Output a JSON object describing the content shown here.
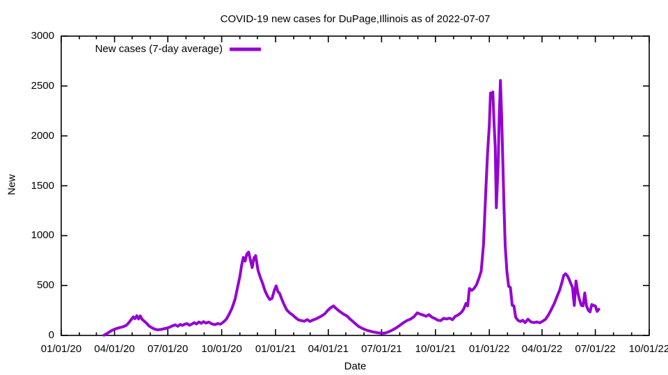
{
  "chart_data": {
    "type": "line",
    "title": "COVID-19 new cases for DuPage,Illinois as of 2022-07-07",
    "xlabel": "Date",
    "ylabel": "New",
    "ylim": [
      0,
      3000
    ],
    "y_ticks": [
      0,
      500,
      1000,
      1500,
      2000,
      2500,
      3000
    ],
    "xlim": [
      "2020-01-01",
      "2022-10-01"
    ],
    "x_major_ticks": [
      "2020-01-01",
      "2020-04-01",
      "2020-07-01",
      "2020-10-01",
      "2021-01-01",
      "2021-04-01",
      "2021-07-01",
      "2021-10-01",
      "2022-01-01",
      "2022-04-01",
      "2022-07-01",
      "2022-10-01"
    ],
    "x_tick_labels": [
      "01/01/20",
      "04/01/20",
      "07/01/20",
      "10/01/20",
      "01/01/21",
      "04/01/21",
      "07/01/21",
      "10/01/21",
      "01/01/22",
      "04/01/22",
      "07/01/22",
      "10/01/22"
    ],
    "x_minor_interval": "monthly",
    "grid": false,
    "background": "#ffffff",
    "axis_color": "#000000",
    "line_color": "#9400d3",
    "legend": {
      "position": "top-left-inside",
      "label": "New cases (7-day average)"
    },
    "series": [
      {
        "name": "New cases (7-day average)",
        "color": "#9400d3",
        "points": [
          [
            "2020-03-14",
            2
          ],
          [
            "2020-03-18",
            15
          ],
          [
            "2020-03-22",
            30
          ],
          [
            "2020-03-27",
            48
          ],
          [
            "2020-04-01",
            62
          ],
          [
            "2020-04-06",
            72
          ],
          [
            "2020-04-11",
            80
          ],
          [
            "2020-04-16",
            88
          ],
          [
            "2020-04-21",
            100
          ],
          [
            "2020-04-25",
            125
          ],
          [
            "2020-04-29",
            155
          ],
          [
            "2020-05-03",
            185
          ],
          [
            "2020-05-06",
            168
          ],
          [
            "2020-05-09",
            198
          ],
          [
            "2020-05-12",
            165
          ],
          [
            "2020-05-15",
            196
          ],
          [
            "2020-05-18",
            162
          ],
          [
            "2020-05-22",
            142
          ],
          [
            "2020-05-26",
            120
          ],
          [
            "2020-05-30",
            95
          ],
          [
            "2020-06-04",
            76
          ],
          [
            "2020-06-09",
            62
          ],
          [
            "2020-06-14",
            56
          ],
          [
            "2020-06-19",
            60
          ],
          [
            "2020-06-24",
            66
          ],
          [
            "2020-06-29",
            73
          ],
          [
            "2020-07-04",
            82
          ],
          [
            "2020-07-09",
            96
          ],
          [
            "2020-07-14",
            106
          ],
          [
            "2020-07-18",
            92
          ],
          [
            "2020-07-22",
            110
          ],
          [
            "2020-07-26",
            100
          ],
          [
            "2020-07-30",
            113
          ],
          [
            "2020-08-03",
            118
          ],
          [
            "2020-08-07",
            102
          ],
          [
            "2020-08-11",
            113
          ],
          [
            "2020-08-15",
            128
          ],
          [
            "2020-08-19",
            115
          ],
          [
            "2020-08-23",
            134
          ],
          [
            "2020-08-27",
            122
          ],
          [
            "2020-08-31",
            138
          ],
          [
            "2020-09-04",
            123
          ],
          [
            "2020-09-09",
            134
          ],
          [
            "2020-09-14",
            116
          ],
          [
            "2020-09-19",
            108
          ],
          [
            "2020-09-24",
            118
          ],
          [
            "2020-09-29",
            113
          ],
          [
            "2020-10-04",
            134
          ],
          [
            "2020-10-09",
            162
          ],
          [
            "2020-10-14",
            215
          ],
          [
            "2020-10-19",
            280
          ],
          [
            "2020-10-24",
            368
          ],
          [
            "2020-10-28",
            478
          ],
          [
            "2020-11-01",
            590
          ],
          [
            "2020-11-04",
            700
          ],
          [
            "2020-11-07",
            782
          ],
          [
            "2020-11-10",
            745
          ],
          [
            "2020-11-13",
            818
          ],
          [
            "2020-11-16",
            835
          ],
          [
            "2020-11-19",
            758
          ],
          [
            "2020-11-22",
            680
          ],
          [
            "2020-11-25",
            775
          ],
          [
            "2020-11-28",
            800
          ],
          [
            "2020-12-02",
            652
          ],
          [
            "2020-12-06",
            580
          ],
          [
            "2020-12-10",
            520
          ],
          [
            "2020-12-14",
            446
          ],
          [
            "2020-12-18",
            396
          ],
          [
            "2020-12-22",
            360
          ],
          [
            "2020-12-26",
            372
          ],
          [
            "2020-12-30",
            455
          ],
          [
            "2021-01-02",
            496
          ],
          [
            "2021-01-05",
            440
          ],
          [
            "2021-01-08",
            420
          ],
          [
            "2021-01-11",
            372
          ],
          [
            "2021-01-15",
            316
          ],
          [
            "2021-01-20",
            256
          ],
          [
            "2021-01-25",
            226
          ],
          [
            "2021-01-30",
            205
          ],
          [
            "2021-02-04",
            178
          ],
          [
            "2021-02-09",
            156
          ],
          [
            "2021-02-14",
            148
          ],
          [
            "2021-02-19",
            142
          ],
          [
            "2021-02-24",
            158
          ],
          [
            "2021-03-01",
            140
          ],
          [
            "2021-03-06",
            155
          ],
          [
            "2021-03-11",
            166
          ],
          [
            "2021-03-16",
            180
          ],
          [
            "2021-03-21",
            196
          ],
          [
            "2021-03-26",
            216
          ],
          [
            "2021-03-31",
            250
          ],
          [
            "2021-04-05",
            278
          ],
          [
            "2021-04-10",
            295
          ],
          [
            "2021-04-14",
            272
          ],
          [
            "2021-04-18",
            252
          ],
          [
            "2021-04-23",
            230
          ],
          [
            "2021-04-28",
            210
          ],
          [
            "2021-05-03",
            194
          ],
          [
            "2021-05-08",
            165
          ],
          [
            "2021-05-13",
            140
          ],
          [
            "2021-05-18",
            114
          ],
          [
            "2021-05-23",
            90
          ],
          [
            "2021-05-28",
            74
          ],
          [
            "2021-06-02",
            60
          ],
          [
            "2021-06-08",
            48
          ],
          [
            "2021-06-14",
            38
          ],
          [
            "2021-06-20",
            31
          ],
          [
            "2021-06-26",
            25
          ],
          [
            "2021-07-02",
            21
          ],
          [
            "2021-07-08",
            25
          ],
          [
            "2021-07-14",
            38
          ],
          [
            "2021-07-20",
            56
          ],
          [
            "2021-07-26",
            76
          ],
          [
            "2021-08-01",
            100
          ],
          [
            "2021-08-07",
            126
          ],
          [
            "2021-08-13",
            148
          ],
          [
            "2021-08-19",
            162
          ],
          [
            "2021-08-25",
            186
          ],
          [
            "2021-08-31",
            226
          ],
          [
            "2021-09-05",
            214
          ],
          [
            "2021-09-10",
            204
          ],
          [
            "2021-09-15",
            192
          ],
          [
            "2021-09-20",
            208
          ],
          [
            "2021-09-25",
            182
          ],
          [
            "2021-09-30",
            170
          ],
          [
            "2021-10-05",
            152
          ],
          [
            "2021-10-10",
            148
          ],
          [
            "2021-10-15",
            172
          ],
          [
            "2021-10-20",
            164
          ],
          [
            "2021-10-25",
            173
          ],
          [
            "2021-10-30",
            158
          ],
          [
            "2021-11-04",
            192
          ],
          [
            "2021-11-09",
            206
          ],
          [
            "2021-11-14",
            228
          ],
          [
            "2021-11-18",
            262
          ],
          [
            "2021-11-22",
            320
          ],
          [
            "2021-11-25",
            296
          ],
          [
            "2021-11-28",
            470
          ],
          [
            "2021-12-02",
            452
          ],
          [
            "2021-12-06",
            472
          ],
          [
            "2021-12-10",
            506
          ],
          [
            "2021-12-14",
            570
          ],
          [
            "2021-12-18",
            642
          ],
          [
            "2021-12-22",
            905
          ],
          [
            "2021-12-26",
            1455
          ],
          [
            "2021-12-29",
            1830
          ],
          [
            "2022-01-01",
            2105
          ],
          [
            "2022-01-03",
            2430
          ],
          [
            "2022-01-05",
            2380
          ],
          [
            "2022-01-07",
            2440
          ],
          [
            "2022-01-09",
            2130
          ],
          [
            "2022-01-11",
            1890
          ],
          [
            "2022-01-13",
            1280
          ],
          [
            "2022-01-16",
            1705
          ],
          [
            "2022-01-18",
            2210
          ],
          [
            "2022-01-20",
            2555
          ],
          [
            "2022-01-22",
            2200
          ],
          [
            "2022-01-24",
            1750
          ],
          [
            "2022-01-26",
            1290
          ],
          [
            "2022-01-28",
            905
          ],
          [
            "2022-01-31",
            640
          ],
          [
            "2022-02-03",
            492
          ],
          [
            "2022-02-06",
            480
          ],
          [
            "2022-02-09",
            302
          ],
          [
            "2022-02-12",
            296
          ],
          [
            "2022-02-15",
            182
          ],
          [
            "2022-02-19",
            150
          ],
          [
            "2022-02-23",
            140
          ],
          [
            "2022-02-27",
            152
          ],
          [
            "2022-03-03",
            128
          ],
          [
            "2022-03-08",
            162
          ],
          [
            "2022-03-13",
            136
          ],
          [
            "2022-03-18",
            128
          ],
          [
            "2022-03-23",
            136
          ],
          [
            "2022-03-28",
            126
          ],
          [
            "2022-04-02",
            142
          ],
          [
            "2022-04-07",
            162
          ],
          [
            "2022-04-12",
            205
          ],
          [
            "2022-04-17",
            262
          ],
          [
            "2022-04-22",
            322
          ],
          [
            "2022-04-27",
            396
          ],
          [
            "2022-05-01",
            452
          ],
          [
            "2022-05-05",
            532
          ],
          [
            "2022-05-08",
            600
          ],
          [
            "2022-05-11",
            618
          ],
          [
            "2022-05-14",
            600
          ],
          [
            "2022-05-17",
            566
          ],
          [
            "2022-05-20",
            522
          ],
          [
            "2022-05-23",
            482
          ],
          [
            "2022-05-26",
            300
          ],
          [
            "2022-05-29",
            546
          ],
          [
            "2022-06-01",
            430
          ],
          [
            "2022-06-04",
            360
          ],
          [
            "2022-06-07",
            302
          ],
          [
            "2022-06-10",
            296
          ],
          [
            "2022-06-13",
            425
          ],
          [
            "2022-06-16",
            296
          ],
          [
            "2022-06-19",
            252
          ],
          [
            "2022-06-22",
            236
          ],
          [
            "2022-06-25",
            310
          ],
          [
            "2022-06-28",
            300
          ],
          [
            "2022-07-01",
            295
          ],
          [
            "2022-07-04",
            240
          ],
          [
            "2022-07-07",
            262
          ]
        ]
      }
    ]
  }
}
